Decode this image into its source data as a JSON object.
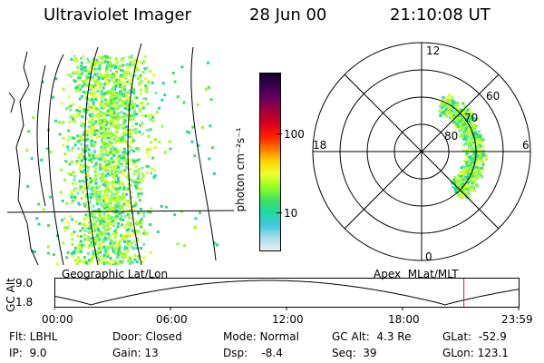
{
  "header": {
    "instrument": "Ultraviolet Imager",
    "date": "28 Jun 00",
    "time": "21:10:08 UT"
  },
  "left_panel": {
    "caption": "Geographic Lat/Lon"
  },
  "right_panel": {
    "caption": "Apex  MLat/MLT",
    "hour_labels": {
      "top": "12",
      "left": "18",
      "right": "6",
      "bottom": "0"
    },
    "lat_labels": [
      "60",
      "70",
      "80"
    ]
  },
  "colorbar": {
    "unit_label": "photon cm⁻²s⁻¹",
    "ticks": [
      "100",
      "10"
    ],
    "colors": [
      "#12002a",
      "#3a0050",
      "#6a0060",
      "#a8003a",
      "#d8001a",
      "#ff2000",
      "#ff7a00",
      "#ffd800",
      "#e8ff30",
      "#90ff20",
      "#40e060",
      "#20d8a0",
      "#40c8e0",
      "#a8dce8",
      "#e8eef0"
    ]
  },
  "altitude_plot": {
    "ylabel": "GC Alt",
    "ymax_label": "9.0",
    "ymin_label": "1.8",
    "x_ticks": [
      "00:00",
      "06:00",
      "12:00",
      "18:00",
      "23:59"
    ],
    "marker_hour": 21.17,
    "marker_color": "#d02020"
  },
  "footer": {
    "filter": "Flt: LBHL",
    "ip": "IP:  9.0",
    "door": "Door: Closed",
    "gain": "Gain: 13",
    "mode": "Mode: Normal",
    "dsp": "Dsp:    -8.4",
    "gc_alt": "GC Alt:  4.3 Re",
    "seq": "Seq:  39",
    "glat": "GLat:  -52.9",
    "glon": "GLon: 123.1"
  }
}
